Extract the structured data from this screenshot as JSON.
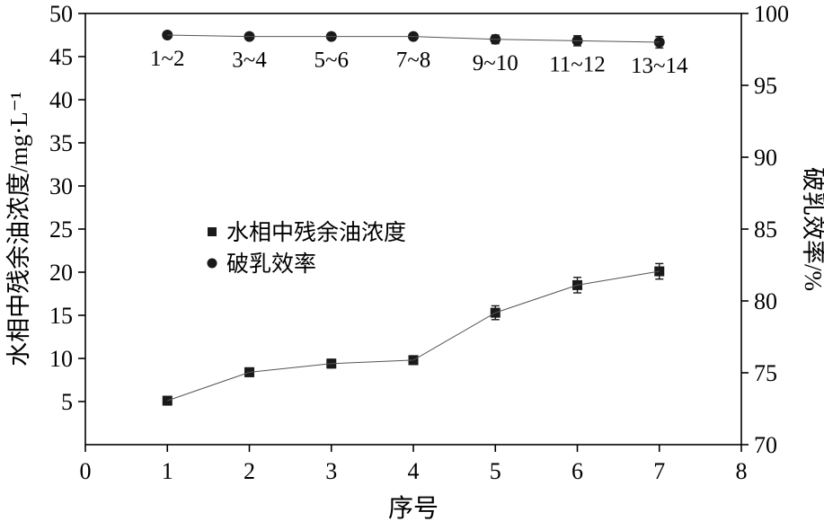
{
  "chart_data": {
    "type": "line",
    "title": "",
    "xlabel": "序号",
    "xlim": [
      0,
      8
    ],
    "x_ticks": [
      0,
      1,
      2,
      3,
      4,
      5,
      6,
      7,
      8
    ],
    "left_axis": {
      "label": "水相中残余油浓度/mg·L⁻¹",
      "lim": [
        0,
        50
      ],
      "ticks": [
        5,
        10,
        15,
        20,
        25,
        30,
        35,
        40,
        45,
        50
      ]
    },
    "right_axis": {
      "label": "破乳效率/%",
      "lim": [
        70,
        100
      ],
      "ticks": [
        70,
        75,
        80,
        85,
        90,
        95,
        100
      ]
    },
    "x": [
      1,
      2,
      3,
      4,
      5,
      6,
      7
    ],
    "series": [
      {
        "name": "水相中残余油浓度",
        "axis": "left",
        "marker": "square",
        "values": [
          5.1,
          8.4,
          9.4,
          9.8,
          15.3,
          18.5,
          20.1
        ],
        "errors": [
          0.5,
          0.5,
          0.5,
          0.5,
          0.8,
          0.9,
          0.9
        ]
      },
      {
        "name": "破乳效率",
        "axis": "right",
        "marker": "circle",
        "values": [
          98.5,
          98.4,
          98.4,
          98.4,
          98.2,
          98.1,
          98.0
        ],
        "errors": [
          0.15,
          0.2,
          0.2,
          0.2,
          0.3,
          0.35,
          0.4
        ],
        "point_labels": [
          "1~2",
          "3~4",
          "5~6",
          "7~8",
          "9~10",
          "11~12",
          "13~14"
        ]
      }
    ],
    "legend": {
      "position": "middle-left",
      "items": [
        {
          "marker": "square",
          "label": "水相中残余油浓度"
        },
        {
          "marker": "circle",
          "label": "破乳效率"
        }
      ]
    },
    "grid": false,
    "frame": true
  },
  "colors": {
    "background": "#ffffff",
    "axis": "#000000",
    "marker": "#1a1a1a",
    "line": "#555555",
    "text": "#000000"
  }
}
